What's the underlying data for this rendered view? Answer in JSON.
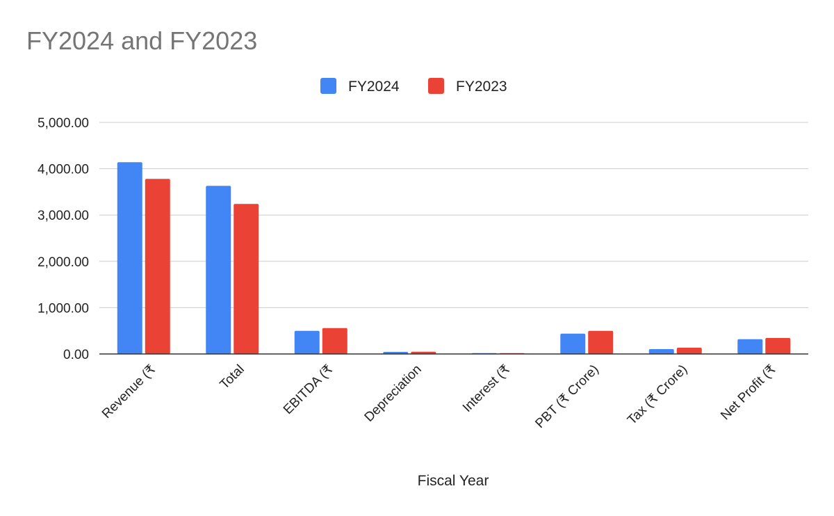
{
  "chart_data": {
    "type": "bar",
    "title": "FY2024 and FY2023",
    "xlabel": "Fiscal Year",
    "ylabel": "",
    "ylim": [
      0,
      5000
    ],
    "yticks": [
      "0.00",
      "1,000.00",
      "2,000.00",
      "3,000.00",
      "4,000.00",
      "5,000.00"
    ],
    "grid": true,
    "legend_position": "top-center",
    "categories": [
      "Revenue (₹",
      "Total",
      "EBITDA (₹",
      "Depreciation",
      "Interest (₹",
      "PBT (₹ Crore)",
      "Tax (₹ Crore)",
      "Net Profit (₹"
    ],
    "series": [
      {
        "name": "FY2024",
        "color": "#4285f4",
        "values": [
          4140,
          3630,
          500,
          45,
          12,
          440,
          105,
          320
        ]
      },
      {
        "name": "FY2023",
        "color": "#ea4335",
        "values": [
          3780,
          3240,
          560,
          48,
          15,
          500,
          135,
          345
        ]
      }
    ]
  }
}
